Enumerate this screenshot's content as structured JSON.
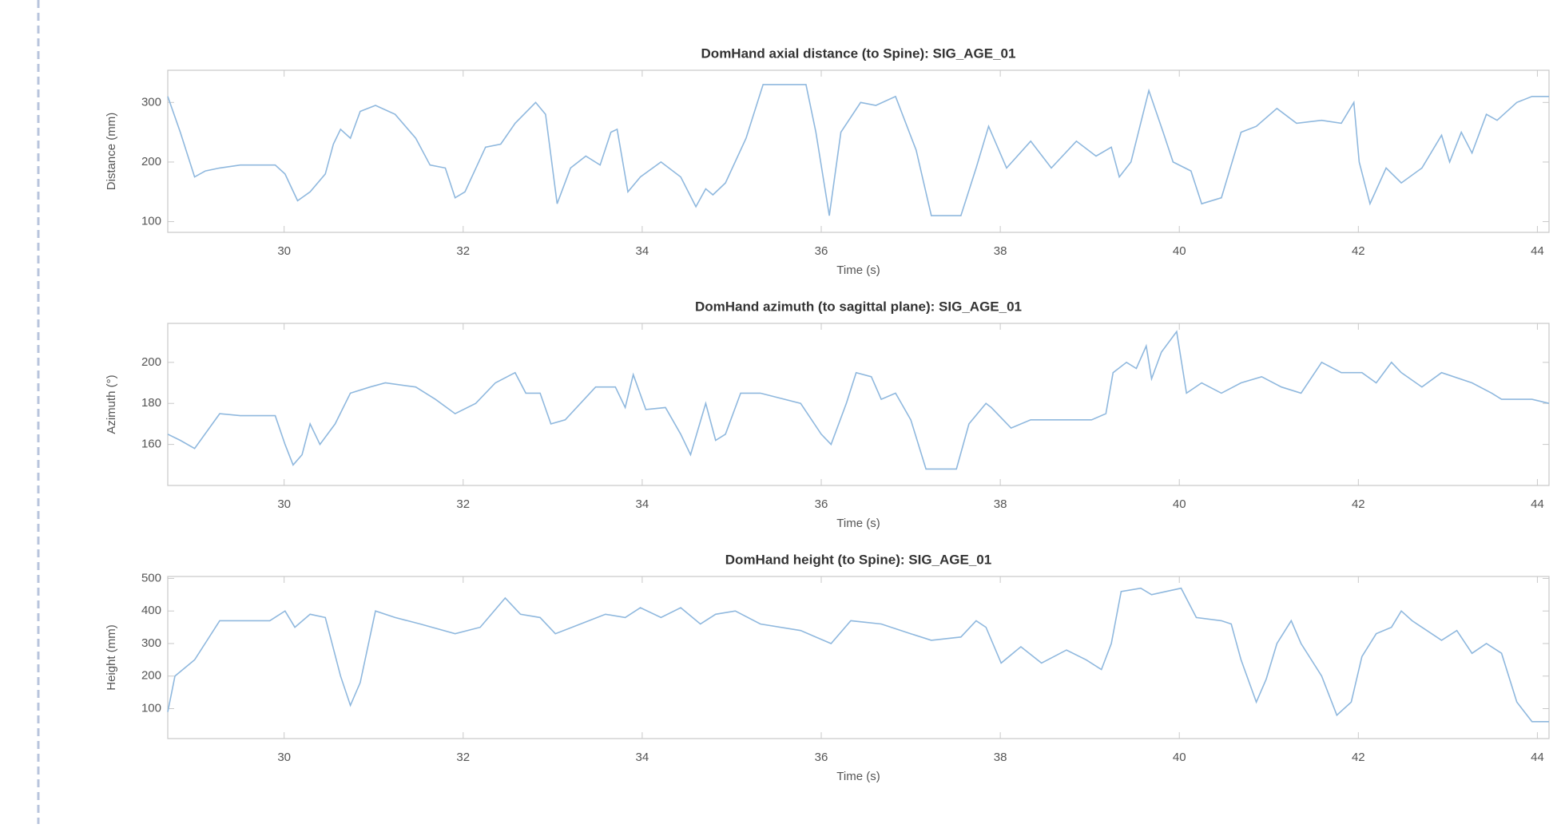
{
  "chart_data": [
    {
      "type": "line",
      "title": "DomHand axial distance (to Spine): SIG_AGE_01",
      "xlabel": "Time (s)",
      "ylabel": "Distance (mm)",
      "color": "#8fb8de",
      "xlim": [
        28.7,
        44.13
      ],
      "xticks": [
        30,
        32,
        34,
        36,
        38,
        40,
        42,
        44
      ],
      "ylim": [
        82,
        354
      ],
      "yticks": [
        100,
        200,
        300
      ],
      "x": [
        28.7,
        28.84,
        29.0,
        29.12,
        29.28,
        29.51,
        29.9,
        30.01,
        30.15,
        30.29,
        30.46,
        30.55,
        30.63,
        30.74,
        30.85,
        31.02,
        31.24,
        31.47,
        31.63,
        31.8,
        31.91,
        32.02,
        32.25,
        32.42,
        32.58,
        32.81,
        32.92,
        33.05,
        33.2,
        33.37,
        33.53,
        33.65,
        33.72,
        33.84,
        33.98,
        34.21,
        34.43,
        34.6,
        34.71,
        34.79,
        34.93,
        35.16,
        35.35,
        35.83,
        35.94,
        36.09,
        36.22,
        36.44,
        36.61,
        36.83,
        37.06,
        37.23,
        37.56,
        37.73,
        37.87,
        38.07,
        38.34,
        38.57,
        38.85,
        39.07,
        39.24,
        39.33,
        39.46,
        39.66,
        39.82,
        39.93,
        40.13,
        40.25,
        40.47,
        40.69,
        40.86,
        41.09,
        41.31,
        41.59,
        41.81,
        41.95,
        42.01,
        42.13,
        42.31,
        42.48,
        42.71,
        42.93,
        43.02,
        43.15,
        43.27,
        43.43,
        43.55,
        43.77,
        43.94,
        44.13
      ],
      "values": [
        310,
        250,
        175,
        185,
        190,
        195,
        195,
        180,
        135,
        150,
        180,
        230,
        255,
        240,
        285,
        295,
        280,
        240,
        195,
        190,
        140,
        150,
        225,
        230,
        265,
        300,
        280,
        130,
        190,
        210,
        195,
        250,
        255,
        150,
        175,
        200,
        175,
        125,
        155,
        145,
        165,
        240,
        330,
        330,
        250,
        110,
        250,
        300,
        295,
        310,
        220,
        110,
        110,
        190,
        260,
        190,
        235,
        190,
        235,
        210,
        225,
        175,
        200,
        320,
        250,
        200,
        185,
        130,
        140,
        250,
        260,
        290,
        265,
        270,
        265,
        300,
        200,
        130,
        190,
        165,
        190,
        245,
        200,
        250,
        215,
        280,
        270,
        300,
        310,
        310
      ]
    },
    {
      "type": "line",
      "title": "DomHand azimuth (to sagittal plane): SIG_AGE_01",
      "xlabel": "Time (s)",
      "ylabel": "Azimuth (°)",
      "color": "#8fb8de",
      "xlim": [
        28.7,
        44.13
      ],
      "xticks": [
        30,
        32,
        34,
        36,
        38,
        40,
        42,
        44
      ],
      "ylim": [
        140,
        219
      ],
      "yticks": [
        160,
        180,
        200
      ],
      "x": [
        28.7,
        28.84,
        29.0,
        29.28,
        29.51,
        29.9,
        30.01,
        30.1,
        30.2,
        30.29,
        30.4,
        30.57,
        30.74,
        30.96,
        31.13,
        31.47,
        31.69,
        31.91,
        32.14,
        32.36,
        32.58,
        32.7,
        32.86,
        32.98,
        33.14,
        33.31,
        33.48,
        33.7,
        33.81,
        33.9,
        34.04,
        34.26,
        34.43,
        34.54,
        34.71,
        34.82,
        34.93,
        35.1,
        35.32,
        35.77,
        36.0,
        36.11,
        36.28,
        36.39,
        36.56,
        36.67,
        36.83,
        37.0,
        37.17,
        37.51,
        37.65,
        37.84,
        37.9,
        38.12,
        38.34,
        38.57,
        39.02,
        39.18,
        39.26,
        39.41,
        39.52,
        39.63,
        39.69,
        39.8,
        39.97,
        40.08,
        40.25,
        40.47,
        40.69,
        40.92,
        41.14,
        41.36,
        41.59,
        41.81,
        42.04,
        42.2,
        42.37,
        42.48,
        42.71,
        42.93,
        43.27,
        43.49,
        43.6,
        43.94,
        44.13
      ],
      "values": [
        165,
        162,
        158,
        175,
        174,
        174,
        160,
        150,
        155,
        170,
        160,
        170,
        185,
        188,
        190,
        188,
        182,
        175,
        180,
        190,
        195,
        185,
        185,
        170,
        172,
        180,
        188,
        188,
        178,
        194,
        177,
        178,
        165,
        155,
        180,
        162,
        165,
        185,
        185,
        180,
        165,
        160,
        180,
        195,
        193,
        182,
        185,
        172,
        148,
        148,
        170,
        180,
        178,
        168,
        172,
        172,
        172,
        175,
        195,
        200,
        197,
        208,
        192,
        205,
        215,
        185,
        190,
        185,
        190,
        193,
        188,
        185,
        200,
        195,
        195,
        190,
        200,
        195,
        188,
        195,
        190,
        185,
        182,
        182,
        180
      ]
    },
    {
      "type": "line",
      "title": "DomHand height (to Spine): SIG_AGE_01",
      "xlabel": "Time (s)",
      "ylabel": "Height (mm)",
      "color": "#8fb8de",
      "xlim": [
        28.7,
        44.13
      ],
      "xticks": [
        30,
        32,
        34,
        36,
        38,
        40,
        42,
        44
      ],
      "ylim": [
        8,
        506
      ],
      "yticks": [
        100,
        200,
        300,
        400,
        500
      ],
      "x": [
        28.7,
        28.78,
        29.0,
        29.28,
        29.84,
        30.01,
        30.12,
        30.29,
        30.46,
        30.63,
        30.74,
        30.85,
        31.02,
        31.24,
        31.52,
        31.91,
        32.19,
        32.47,
        32.64,
        32.86,
        33.03,
        33.31,
        33.59,
        33.81,
        33.98,
        34.21,
        34.43,
        34.65,
        34.82,
        35.04,
        35.32,
        35.77,
        36.11,
        36.33,
        36.67,
        37.0,
        37.23,
        37.56,
        37.73,
        37.84,
        38.01,
        38.23,
        38.46,
        38.74,
        38.96,
        39.13,
        39.24,
        39.35,
        39.57,
        39.69,
        39.85,
        40.02,
        40.19,
        40.47,
        40.58,
        40.69,
        40.86,
        40.97,
        41.09,
        41.25,
        41.36,
        41.59,
        41.76,
        41.92,
        42.04,
        42.2,
        42.37,
        42.48,
        42.6,
        42.71,
        42.93,
        43.1,
        43.27,
        43.43,
        43.6,
        43.77,
        43.94,
        44.13
      ],
      "values": [
        90,
        200,
        250,
        370,
        370,
        400,
        350,
        390,
        380,
        200,
        110,
        180,
        400,
        380,
        360,
        330,
        350,
        440,
        390,
        380,
        330,
        360,
        390,
        380,
        410,
        380,
        410,
        360,
        390,
        400,
        360,
        340,
        300,
        370,
        360,
        330,
        310,
        320,
        370,
        350,
        240,
        290,
        240,
        280,
        250,
        220,
        300,
        460,
        470,
        450,
        460,
        470,
        380,
        370,
        360,
        250,
        120,
        190,
        300,
        370,
        300,
        200,
        80,
        120,
        260,
        330,
        350,
        400,
        370,
        350,
        310,
        340,
        270,
        300,
        270,
        120,
        60,
        60
      ]
    }
  ]
}
